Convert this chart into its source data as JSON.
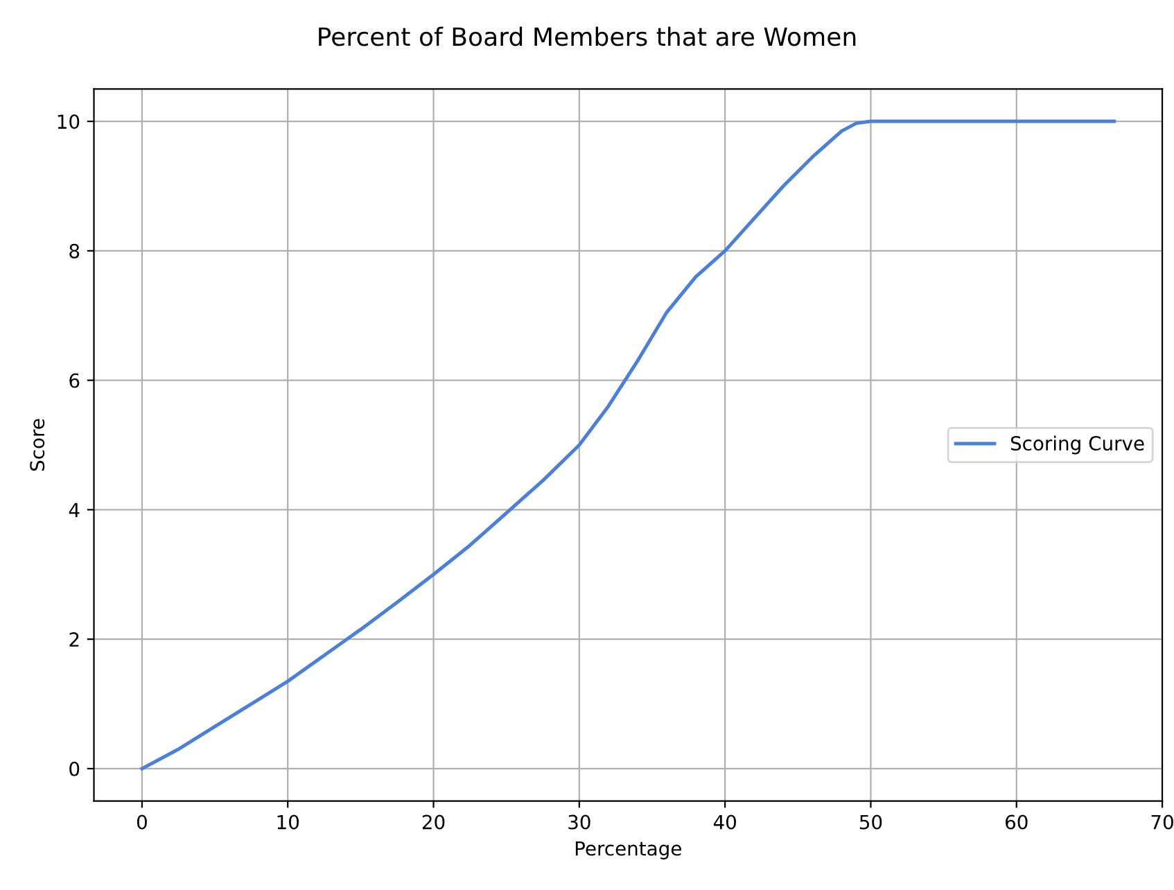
{
  "chart_data": {
    "type": "line",
    "title": "Percent of Board Members that are Women",
    "xlabel": "Percentage",
    "ylabel": "Score",
    "x": [
      0,
      2.5,
      5,
      7.5,
      10,
      12.5,
      15,
      17.5,
      20,
      22.5,
      25,
      27.5,
      30,
      32,
      34,
      36,
      38,
      40,
      42,
      44,
      46,
      48,
      49,
      50,
      55,
      60,
      66.7
    ],
    "series": [
      {
        "name": "Scoring Curve",
        "color": "#4a7fdc",
        "values": [
          0,
          0.3,
          0.65,
          1.0,
          1.35,
          1.75,
          2.15,
          2.57,
          3.0,
          3.45,
          3.95,
          4.45,
          5.0,
          5.6,
          6.3,
          7.05,
          7.6,
          8.0,
          8.5,
          9.0,
          9.45,
          9.85,
          9.97,
          10,
          10,
          10,
          10
        ]
      }
    ],
    "xlim": [
      -3.3,
      70
    ],
    "xticks": [
      0,
      10,
      20,
      30,
      40,
      50,
      60,
      70
    ],
    "ylim": [
      -0.5,
      10.5
    ],
    "yticks": [
      0,
      2,
      4,
      6,
      8,
      10
    ],
    "grid": true,
    "legend": "right",
    "marker": "none",
    "line_style": "solid"
  }
}
